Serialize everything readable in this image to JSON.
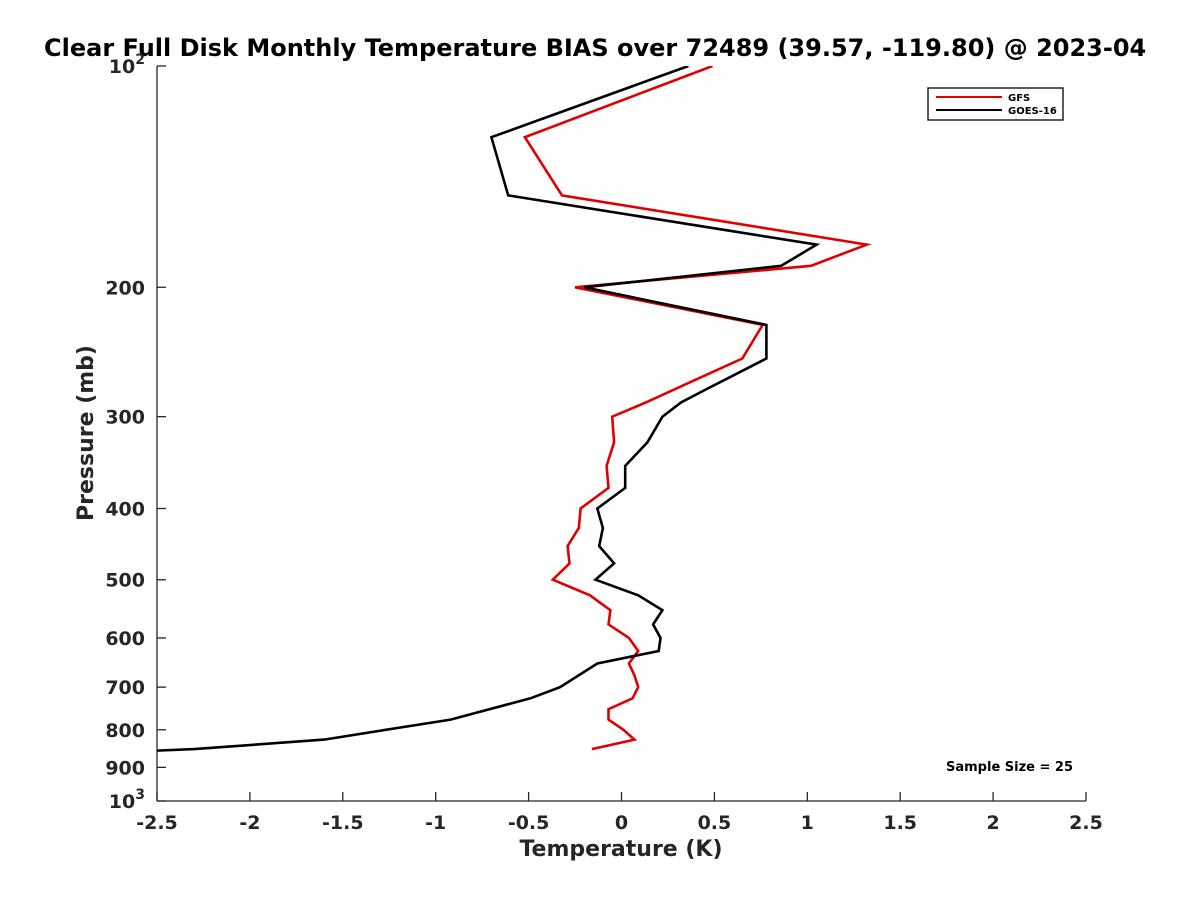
{
  "chart_data": {
    "type": "line",
    "title": "Clear Full Disk Monthly Temperature BIAS over 72489 (39.57, -119.80) @ 2023-04",
    "xlabel": "Temperature (K)",
    "ylabel": "Pressure (mb)",
    "xlim": [
      -2.5,
      2.5
    ],
    "ylim": [
      100,
      1000
    ],
    "yscale": "log",
    "y_reversed": true,
    "x_ticks": [
      -2.5,
      -2,
      -1.5,
      -1,
      -0.5,
      0,
      0.5,
      1,
      1.5,
      2,
      2.5
    ],
    "x_tick_labels": [
      "-2.5",
      "-2",
      "-1.5",
      "-1",
      "-0.5",
      "0",
      "0.5",
      "1",
      "1.5",
      "2",
      "2.5"
    ],
    "y_ticks": [
      200,
      300,
      400,
      500,
      600,
      700,
      800,
      900
    ],
    "y_tick_labels": [
      "200",
      "300",
      "400",
      "500",
      "600",
      "700",
      "800",
      "900"
    ],
    "y_ticks_exp": [
      {
        "value": 100,
        "base": "10",
        "exp": "2"
      },
      {
        "value": 1000,
        "base": "10",
        "exp": "3"
      }
    ],
    "legend_position": "top-right",
    "grid": false,
    "annotation": "Sample Size = 25",
    "series": [
      {
        "name": "GFS",
        "color": "#e00000",
        "points": [
          [
            0.49,
            100
          ],
          [
            -0.52,
            125
          ],
          [
            -0.32,
            150
          ],
          [
            1.32,
            175
          ],
          [
            1.02,
            187
          ],
          [
            -0.25,
            200
          ],
          [
            0.76,
            225
          ],
          [
            0.65,
            250
          ],
          [
            0.29,
            275
          ],
          [
            0.13,
            287
          ],
          [
            -0.05,
            300
          ],
          [
            -0.04,
            325
          ],
          [
            -0.08,
            350
          ],
          [
            -0.07,
            375
          ],
          [
            -0.22,
            400
          ],
          [
            -0.23,
            425
          ],
          [
            -0.29,
            450
          ],
          [
            -0.28,
            475
          ],
          [
            -0.37,
            500
          ],
          [
            -0.17,
            525
          ],
          [
            -0.06,
            550
          ],
          [
            -0.07,
            575
          ],
          [
            0.04,
            600
          ],
          [
            0.09,
            625
          ],
          [
            0.04,
            650
          ],
          [
            0.07,
            675
          ],
          [
            0.09,
            700
          ],
          [
            0.06,
            725
          ],
          [
            -0.07,
            750
          ],
          [
            -0.07,
            775
          ],
          [
            0.01,
            800
          ],
          [
            0.07,
            825
          ],
          [
            -0.16,
            850
          ]
        ]
      },
      {
        "name": "GOES-16",
        "color": "#000000",
        "points": [
          [
            0.36,
            100
          ],
          [
            -0.7,
            125
          ],
          [
            -0.61,
            150
          ],
          [
            1.05,
            175
          ],
          [
            0.86,
            187
          ],
          [
            -0.2,
            200
          ],
          [
            0.78,
            225
          ],
          [
            0.78,
            250
          ],
          [
            0.46,
            275
          ],
          [
            0.32,
            287
          ],
          [
            0.22,
            300
          ],
          [
            0.14,
            325
          ],
          [
            0.02,
            350
          ],
          [
            0.02,
            375
          ],
          [
            -0.13,
            400
          ],
          [
            -0.1,
            425
          ],
          [
            -0.12,
            450
          ],
          [
            -0.04,
            475
          ],
          [
            -0.14,
            500
          ],
          [
            0.09,
            525
          ],
          [
            0.22,
            550
          ],
          [
            0.17,
            575
          ],
          [
            0.21,
            600
          ],
          [
            0.2,
            625
          ],
          [
            -0.13,
            650
          ],
          [
            -0.33,
            700
          ],
          [
            -0.49,
            725
          ],
          [
            -0.92,
            775
          ],
          [
            -1.6,
            825
          ],
          [
            -2.3,
            850
          ],
          [
            -2.55,
            855
          ]
        ]
      }
    ]
  }
}
